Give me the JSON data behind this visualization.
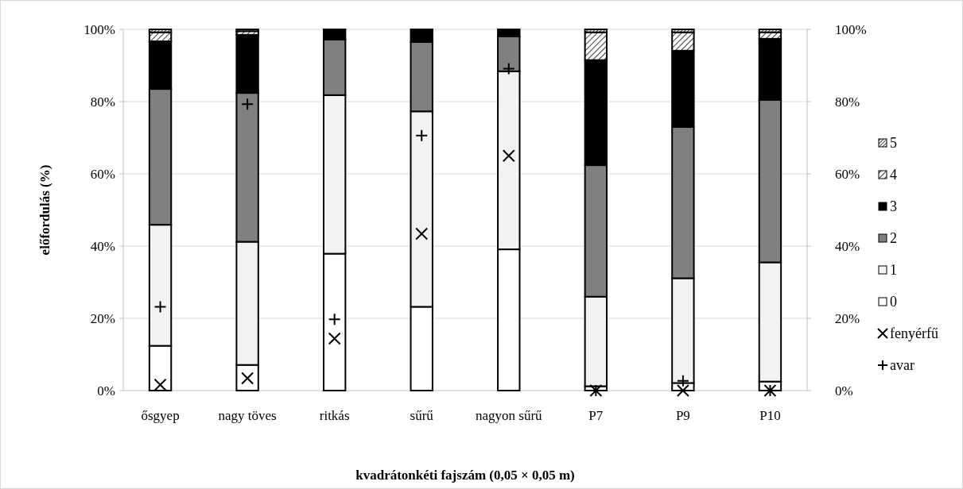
{
  "chart_data": {
    "type": "bar",
    "stacked": true,
    "xlabel": "kvadrátonkéti fajszám (0,05 × 0,05 m)",
    "ylabel": "előfordulás (%)",
    "categories": [
      "ősgyep",
      "nagy töves",
      "ritkás",
      "sűrű",
      "nagyon sűrű",
      "P7",
      "P9",
      "P10"
    ],
    "series": [
      {
        "name": "0",
        "color": "#ffffff",
        "values": [
          12.4,
          7.1,
          37.9,
          23.2,
          39.1,
          1.2,
          2.1,
          2.5
        ]
      },
      {
        "name": "1",
        "color": "#f2f2f2",
        "values": [
          33.5,
          34.1,
          43.9,
          54.1,
          49.3,
          24.8,
          29.0,
          33.0
        ]
      },
      {
        "name": "2",
        "color": "#808080",
        "values": [
          37.6,
          41.2,
          15.4,
          19.2,
          9.7,
          36.4,
          41.9,
          45.0
        ]
      },
      {
        "name": "3",
        "color": "#000000",
        "values": [
          13.2,
          16.1,
          2.8,
          3.5,
          1.9,
          29.1,
          21.1,
          16.9
        ]
      },
      {
        "name": "4",
        "color": "#000000",
        "values": [
          2.5,
          1.0,
          0,
          0,
          0,
          7.7,
          5.1,
          1.8
        ]
      },
      {
        "name": "5",
        "color": "#000000",
        "values": [
          0.8,
          0.5,
          0,
          0,
          0,
          0.8,
          0.8,
          0.8
        ]
      },
      {
        "name": "fenyérfű",
        "type": "scatter",
        "marker": "x",
        "color": "#000000",
        "x": [
          "ősgyep",
          "nagy töves",
          "ritkás",
          "sűrű",
          "nagyon sűrű",
          "P7",
          "P9",
          "P10"
        ],
        "values": [
          1.6,
          3.4,
          14.4,
          43.4,
          65.0,
          0,
          0,
          0
        ]
      },
      {
        "name": "avar",
        "type": "scatter",
        "marker": "cross",
        "color": "#000000",
        "x": [
          "ősgyep",
          "nagy töves",
          "ritkás",
          "sűrű",
          "nagyon sűrű",
          "P7",
          "P9",
          "P10"
        ],
        "values": [
          23.2,
          79.3,
          19.7,
          70.6,
          89.1,
          0,
          2.7,
          0
        ]
      }
    ],
    "ylim": [
      0,
      100
    ],
    "yticks": [
      {
        "value": 0,
        "label": "0%"
      },
      {
        "value": 20,
        "label": "20%"
      },
      {
        "value": 40,
        "label": "40%"
      },
      {
        "value": 60,
        "label": "60%"
      },
      {
        "value": 80,
        "label": "80%"
      },
      {
        "value": 100,
        "label": "100%"
      }
    ],
    "y2lim": [
      0,
      100
    ],
    "y2ticks": [
      {
        "value": 0,
        "label": "0%"
      },
      {
        "value": 20,
        "label": "20%"
      },
      {
        "value": 40,
        "label": "40%"
      },
      {
        "value": 60,
        "label": "60%"
      },
      {
        "value": 80,
        "label": "80%"
      },
      {
        "value": 100,
        "label": "100%"
      }
    ],
    "grid": "y",
    "legend": "right"
  }
}
